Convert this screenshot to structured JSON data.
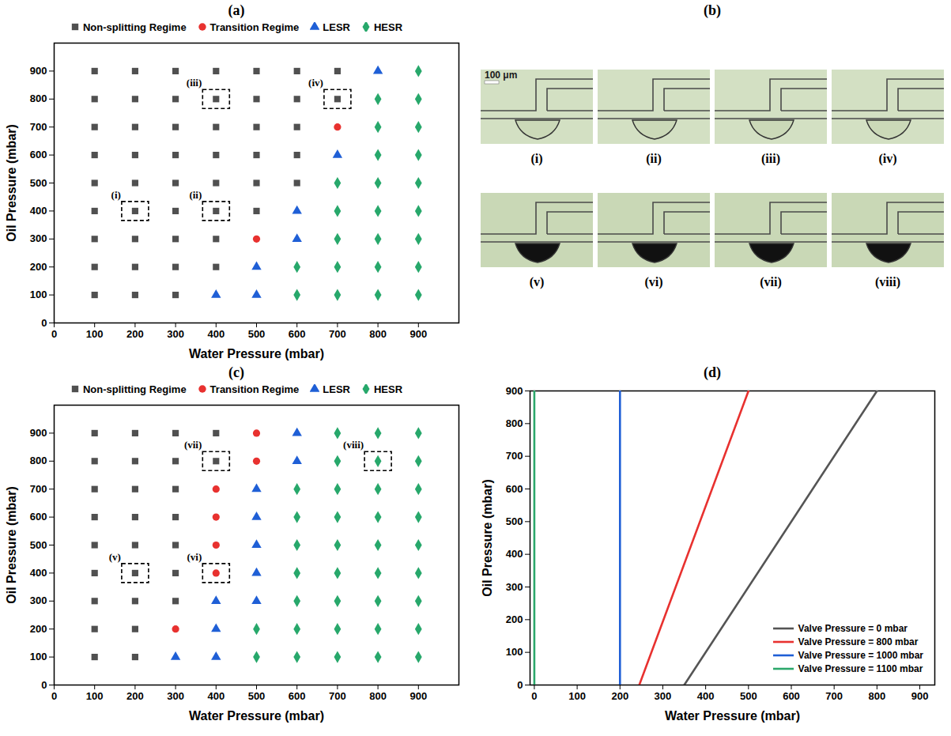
{
  "chart_data": [
    {
      "type": "scatter",
      "title": "(a)",
      "xlabel": "Water Pressure (mbar)",
      "ylabel": "Oil Pressure (mbar)",
      "xlim": [
        0,
        1000
      ],
      "ylim": [
        0,
        1000
      ],
      "xticks": [
        0,
        100,
        200,
        300,
        400,
        500,
        600,
        700,
        800,
        900
      ],
      "yticks": [
        0,
        100,
        200,
        300,
        400,
        500,
        600,
        700,
        800,
        900
      ],
      "legend": "top",
      "series": [
        {
          "name": "Non-splitting Regime",
          "color": "#505050",
          "marker": "square",
          "x": [
            100,
            200,
            300,
            400,
            500,
            600,
            700,
            100,
            200,
            300,
            400,
            500,
            600,
            700,
            100,
            200,
            300,
            400,
            500,
            600,
            100,
            200,
            300,
            400,
            500,
            600,
            100,
            200,
            300,
            400,
            500,
            600,
            100,
            200,
            300,
            400,
            500,
            100,
            200,
            300,
            400,
            100,
            200,
            300,
            400,
            100,
            200,
            300
          ],
          "y": [
            900,
            900,
            900,
            900,
            900,
            900,
            900,
            800,
            800,
            800,
            800,
            800,
            800,
            800,
            700,
            700,
            700,
            700,
            700,
            700,
            600,
            600,
            600,
            600,
            600,
            600,
            500,
            500,
            500,
            500,
            500,
            500,
            400,
            400,
            400,
            400,
            400,
            300,
            300,
            300,
            300,
            200,
            200,
            200,
            200,
            100,
            100,
            100
          ]
        },
        {
          "name": "Transition Regime",
          "color": "#e8312f",
          "marker": "circle",
          "x": [
            700,
            500
          ],
          "y": [
            700,
            300
          ]
        },
        {
          "name": "LESR",
          "color": "#1f5fd6",
          "marker": "triangle",
          "x": [
            800,
            700,
            600,
            600,
            500,
            400,
            500
          ],
          "y": [
            900,
            600,
            400,
            300,
            200,
            100,
            100
          ]
        },
        {
          "name": "HESR",
          "color": "#27a86b",
          "marker": "diamond",
          "x": [
            900,
            800,
            900,
            800,
            900,
            800,
            900,
            700,
            800,
            900,
            700,
            800,
            900,
            700,
            800,
            900,
            600,
            700,
            800,
            900,
            600,
            700,
            800,
            900
          ],
          "y": [
            900,
            800,
            800,
            700,
            700,
            600,
            600,
            500,
            500,
            500,
            400,
            400,
            400,
            300,
            300,
            300,
            200,
            200,
            200,
            200,
            100,
            100,
            100,
            100
          ]
        }
      ],
      "annotations": [
        {
          "text": "(i)",
          "x": 200,
          "y": 400
        },
        {
          "text": "(ii)",
          "x": 400,
          "y": 400
        },
        {
          "text": "(iii)",
          "x": 400,
          "y": 800
        },
        {
          "text": "(iv)",
          "x": 700,
          "y": 800
        }
      ]
    },
    {
      "type": "images",
      "title": "(b)",
      "scale_bar": "100 μm",
      "labels": [
        "(i)",
        "(ii)",
        "(iii)",
        "(iv)",
        "(v)",
        "(vi)",
        "(vii)",
        "(viii)"
      ]
    },
    {
      "type": "scatter",
      "title": "(c)",
      "xlabel": "Water Pressure (mbar)",
      "ylabel": "Oil Pressure (mbar)",
      "xlim": [
        0,
        1000
      ],
      "ylim": [
        0,
        1000
      ],
      "xticks": [
        0,
        100,
        200,
        300,
        400,
        500,
        600,
        700,
        800,
        900
      ],
      "yticks": [
        0,
        100,
        200,
        300,
        400,
        500,
        600,
        700,
        800,
        900
      ],
      "legend": "top",
      "series": [
        {
          "name": "Non-splitting Regime",
          "color": "#505050",
          "marker": "square",
          "x": [
            100,
            200,
            300,
            400,
            100,
            200,
            300,
            400,
            100,
            200,
            300,
            100,
            200,
            300,
            100,
            200,
            300,
            100,
            200,
            300,
            100,
            200,
            300,
            100,
            200,
            100,
            200
          ],
          "y": [
            900,
            900,
            900,
            900,
            800,
            800,
            800,
            800,
            700,
            700,
            700,
            600,
            600,
            600,
            500,
            500,
            500,
            400,
            400,
            400,
            300,
            300,
            300,
            200,
            200,
            100,
            100
          ]
        },
        {
          "name": "Transition Regime",
          "color": "#e8312f",
          "marker": "circle",
          "x": [
            500,
            500,
            400,
            400,
            400,
            400,
            300
          ],
          "y": [
            900,
            800,
            700,
            600,
            500,
            400,
            200
          ]
        },
        {
          "name": "LESR",
          "color": "#1f5fd6",
          "marker": "triangle",
          "x": [
            600,
            600,
            500,
            500,
            500,
            500,
            400,
            500,
            400,
            300,
            400
          ],
          "y": [
            900,
            800,
            700,
            600,
            500,
            400,
            300,
            300,
            200,
            100,
            100
          ]
        },
        {
          "name": "HESR",
          "color": "#27a86b",
          "marker": "diamond",
          "x": [
            700,
            800,
            900,
            700,
            800,
            900,
            600,
            700,
            800,
            900,
            600,
            700,
            800,
            900,
            600,
            700,
            800,
            900,
            600,
            700,
            800,
            900,
            600,
            700,
            800,
            900,
            500,
            600,
            700,
            800,
            900,
            500,
            600,
            700,
            800,
            900
          ],
          "y": [
            900,
            900,
            900,
            800,
            800,
            800,
            700,
            700,
            700,
            700,
            600,
            600,
            600,
            600,
            500,
            500,
            500,
            500,
            400,
            400,
            400,
            400,
            300,
            300,
            300,
            300,
            200,
            200,
            200,
            200,
            200,
            100,
            100,
            100,
            100,
            100
          ]
        }
      ],
      "annotations": [
        {
          "text": "(v)",
          "x": 200,
          "y": 400
        },
        {
          "text": "(vi)",
          "x": 400,
          "y": 400
        },
        {
          "text": "(vii)",
          "x": 400,
          "y": 800
        },
        {
          "text": "(viii)",
          "x": 800,
          "y": 800
        }
      ]
    },
    {
      "type": "line",
      "title": "(d)",
      "xlabel": "Water Pressure (mbar)",
      "ylabel": "Oil Pressure (mbar)",
      "xlim": [
        -10,
        935
      ],
      "ylim": [
        0,
        900
      ],
      "xticks": [
        0,
        100,
        200,
        300,
        400,
        500,
        600,
        700,
        800,
        900
      ],
      "yticks": [
        0,
        100,
        200,
        300,
        400,
        500,
        600,
        700,
        800,
        900
      ],
      "legend": "bottom-right",
      "series": [
        {
          "name": "Valve Pressure = 0 mbar",
          "color": "#555555",
          "line_style": "solid",
          "x": [
            350,
            800
          ],
          "y": [
            0,
            900
          ]
        },
        {
          "name": "Valve Pressure = 800 mbar",
          "color": "#e8312f",
          "line_style": "solid",
          "x": [
            245,
            500
          ],
          "y": [
            0,
            900
          ]
        },
        {
          "name": "Valve Pressure = 1000 mbar",
          "color": "#1f5fd6",
          "line_style": "solid",
          "x": [
            200,
            200
          ],
          "y": [
            0,
            900
          ]
        },
        {
          "name": "Valve Pressure = 1100 mbar",
          "color": "#2ca86b",
          "line_style": "solid",
          "x": [
            0,
            0
          ],
          "y": [
            0,
            900
          ]
        }
      ]
    }
  ]
}
